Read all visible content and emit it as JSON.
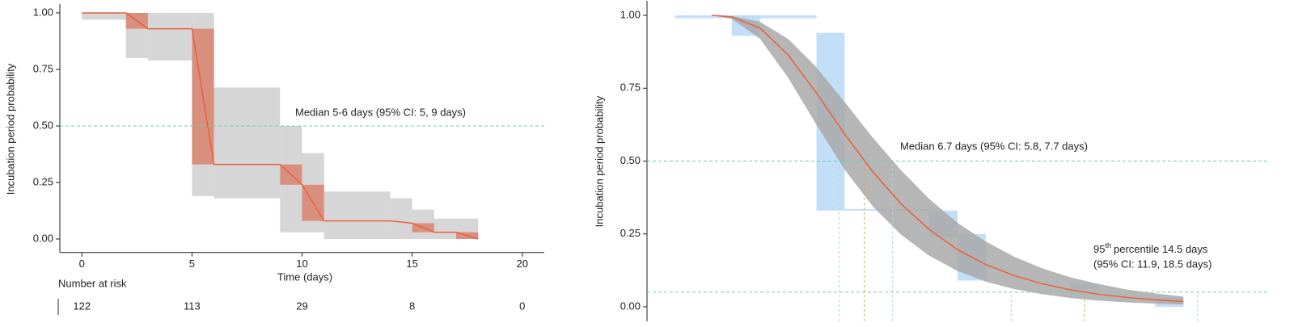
{
  "chart_data": [
    {
      "type": "step",
      "y_label": "Incubation period probability",
      "x_label": "Time (days)",
      "xlim": [
        -1,
        21
      ],
      "ylim": [
        -0.06,
        1.04
      ],
      "xticks": [
        0,
        5,
        10,
        15,
        20
      ],
      "yticks": [
        {
          "value": 0,
          "label": "0.00"
        },
        {
          "value": 0.25,
          "label": "0.25"
        },
        {
          "value": 0.5,
          "label": "0.50"
        },
        {
          "value": 0.75,
          "label": "0.75"
        },
        {
          "value": 1,
          "label": "1.00"
        }
      ],
      "ci_band": {
        "color": "#d6d6d6",
        "x0": [
          0,
          2,
          3,
          5,
          6,
          9,
          10,
          11,
          14,
          15,
          16
        ],
        "x1": [
          2,
          3,
          5,
          6,
          9,
          10,
          11,
          14,
          15,
          16,
          18
        ],
        "lower": [
          0.97,
          0.8,
          0.79,
          0.19,
          0.18,
          0.03,
          0.03,
          0,
          0,
          0,
          0
        ],
        "upper": [
          1,
          1,
          1,
          1,
          0.67,
          0.5,
          0.38,
          0.21,
          0.18,
          0.13,
          0.09
        ]
      },
      "intervals": {
        "color": "#d9826f",
        "x0": [
          2,
          5,
          9,
          10,
          15,
          17
        ],
        "x1": [
          3,
          6,
          10,
          11,
          16,
          18
        ],
        "y0": [
          0.93,
          0.33,
          0.24,
          0.08,
          0.03,
          0
        ],
        "y1": [
          1,
          0.93,
          0.33,
          0.24,
          0.07,
          0.03
        ]
      },
      "line": {
        "color": "#e8603c",
        "x": [
          0,
          2,
          3,
          5,
          6,
          9,
          10,
          11,
          14,
          15,
          16,
          17,
          18
        ],
        "y": [
          1,
          1,
          0.93,
          0.93,
          0.33,
          0.33,
          0.24,
          0.08,
          0.08,
          0.07,
          0.03,
          0.03,
          0
        ]
      },
      "reference": {
        "value": 0.5,
        "color": "#6fcfa9"
      },
      "annotation": "Median 5-6 days (95% CI: 5, 9 days)",
      "risk_table": {
        "title": "Number at risk",
        "counts": [
          122,
          113,
          29,
          8,
          0
        ]
      }
    },
    {
      "type": "curve",
      "y_label": "Incubation period probability",
      "xlim": [
        -1,
        21
      ],
      "ylim": [
        -0.05,
        1.05
      ],
      "yticks": [
        {
          "value": 0,
          "label": "0.00"
        },
        {
          "value": 0.25,
          "label": "0.25"
        },
        {
          "value": 0.5,
          "label": "0.50"
        },
        {
          "value": 0.75,
          "label": "0.75"
        },
        {
          "value": 1,
          "label": "1.00"
        }
      ],
      "intervals": {
        "color": "#bcdcf7",
        "x0": [
          0,
          2,
          5,
          6,
          9,
          10,
          14,
          17
        ],
        "x1": [
          5,
          3,
          6,
          9,
          10,
          11,
          15,
          18
        ],
        "y0": [
          0.99,
          0.93,
          0.33,
          0.33,
          0.24,
          0.09,
          0.06,
          0
        ],
        "y1": [
          1,
          1,
          0.94,
          0.335,
          0.33,
          0.25,
          0.08,
          0.03
        ]
      },
      "band": {
        "color": "#a9a9a9",
        "x": [
          1.5,
          2,
          3,
          4,
          5,
          6,
          7,
          8,
          9,
          10,
          11,
          12,
          13,
          14,
          15,
          16,
          17,
          18
        ],
        "lower": [
          0.998,
          0.988,
          0.92,
          0.786,
          0.625,
          0.471,
          0.344,
          0.247,
          0.175,
          0.123,
          0.086,
          0.061,
          0.043,
          0.03,
          0.021,
          0.015,
          0.011,
          0.008
        ],
        "upper": [
          1,
          0.998,
          0.978,
          0.919,
          0.822,
          0.703,
          0.58,
          0.468,
          0.37,
          0.288,
          0.224,
          0.172,
          0.132,
          0.101,
          0.078,
          0.059,
          0.046,
          0.035
        ]
      },
      "curve": {
        "color": "#e8603c",
        "x": [
          1.3,
          2,
          3,
          4,
          5,
          6,
          7,
          8,
          9,
          10,
          11,
          12,
          13,
          14,
          15,
          16,
          17,
          18
        ],
        "y": [
          1,
          0.995,
          0.957,
          0.864,
          0.734,
          0.593,
          0.463,
          0.353,
          0.265,
          0.196,
          0.145,
          0.107,
          0.079,
          0.058,
          0.043,
          0.032,
          0.024,
          0.018
        ]
      },
      "references": {
        "values": [
          0.5,
          0.05
        ],
        "color": "#6fcfa9"
      },
      "estimates": {
        "color": "#f0a030",
        "ci_color": "#9fd9e6",
        "x": [
          6.7,
          14.5
        ],
        "y": [
          0.5,
          0.05
        ],
        "ci_low": [
          5.8,
          11.9
        ],
        "ci_high": [
          7.7,
          18.5
        ]
      },
      "median_label": "Median 6.7 days (95% CI: 5.8, 7.7 days)",
      "p95_label": {
        "number": "95",
        "superscript": "th",
        "text": "percentile 14.5 days",
        "line2": "(95% CI: 11.9, 18.5 days)"
      }
    }
  ]
}
